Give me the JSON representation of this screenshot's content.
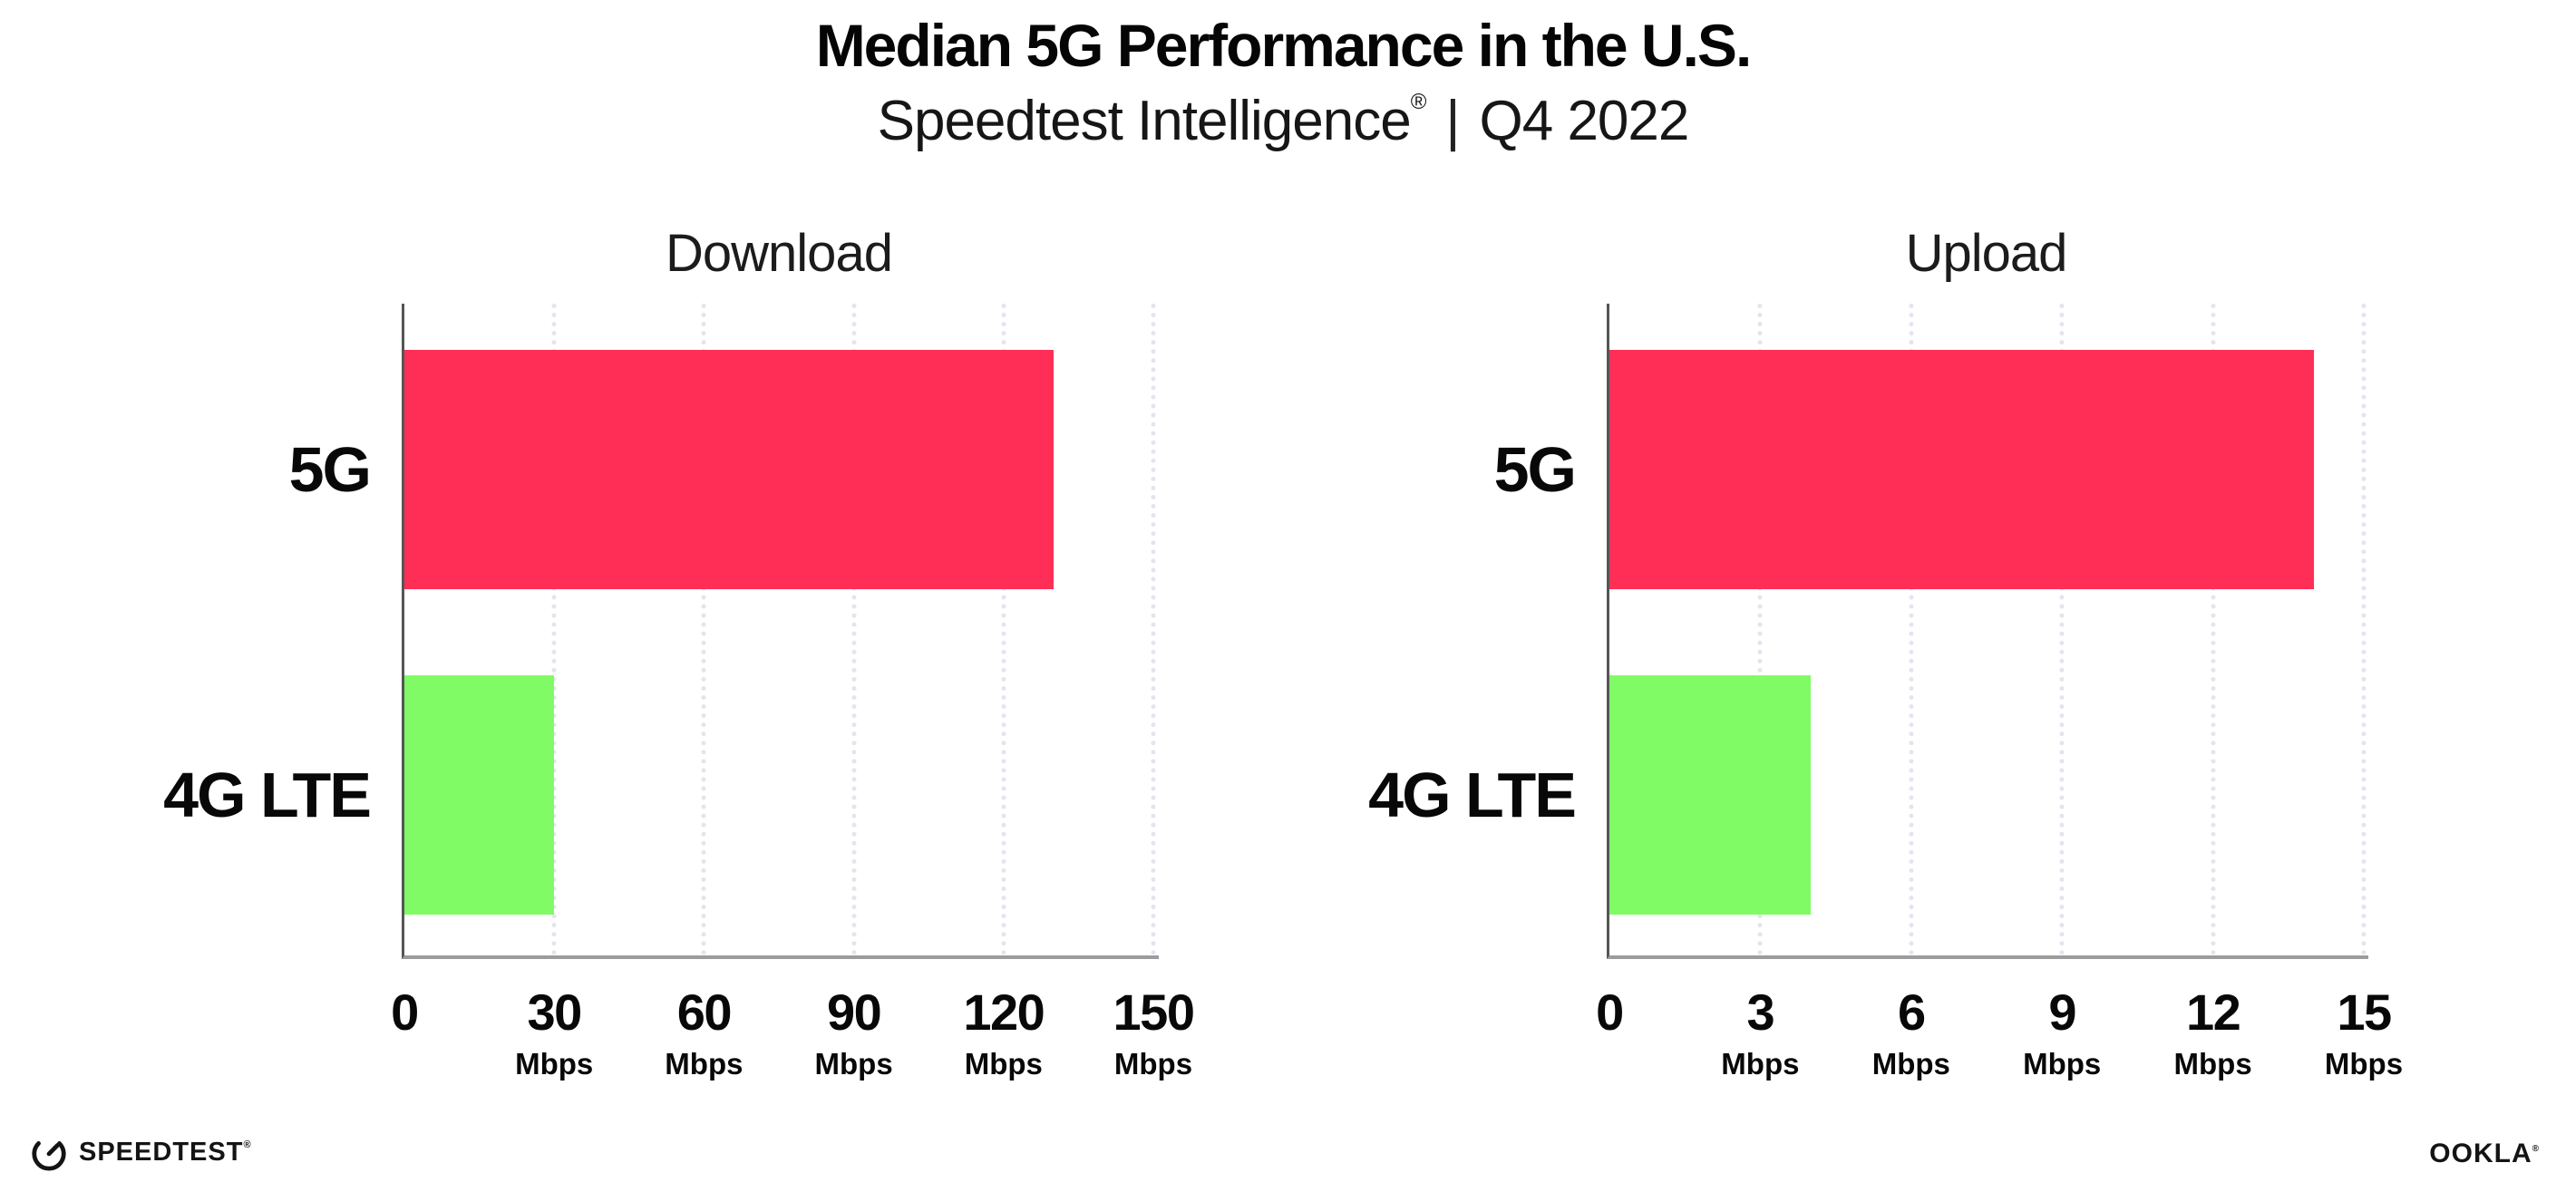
{
  "header": {
    "title": "Median 5G Performance in the U.S.",
    "subtitle_brand": "Speedtest Intelligence",
    "subtitle_reg": "®",
    "subtitle_separator": "|",
    "subtitle_period": "Q4 2022"
  },
  "chart_data": [
    {
      "type": "bar",
      "orientation": "horizontal",
      "title": "Download",
      "categories": [
        "5G",
        "4G LTE"
      ],
      "values": [
        130,
        30
      ],
      "unit": "Mbps",
      "xlim": [
        0,
        150
      ],
      "xticks": [
        0,
        30,
        60,
        90,
        120,
        150
      ],
      "bar_colors": [
        "#ff2e56",
        "#80fb66"
      ],
      "grid": "dotted-vertical",
      "legend": "none"
    },
    {
      "type": "bar",
      "orientation": "horizontal",
      "title": "Upload",
      "categories": [
        "5G",
        "4G LTE"
      ],
      "values": [
        14,
        4
      ],
      "unit": "Mbps",
      "xlim": [
        0,
        15
      ],
      "xticks": [
        0,
        3,
        6,
        9,
        12,
        15
      ],
      "bar_colors": [
        "#ff2e56",
        "#80fb66"
      ],
      "grid": "dotted-vertical",
      "legend": "none"
    }
  ],
  "colors": {
    "bar_5g": "#ff2e56",
    "bar_4g_lte": "#80fb66",
    "gridline": "#e5e4ee",
    "y_axis": "#555555",
    "x_axis": "#9c9c9c",
    "text": "#0a0a0a",
    "background": "#ffffff"
  },
  "footer": {
    "speedtest_logo_text": "SPEEDTEST",
    "speedtest_reg": "®",
    "ookla_logo_text": "OOKLA",
    "ookla_reg": "®"
  }
}
